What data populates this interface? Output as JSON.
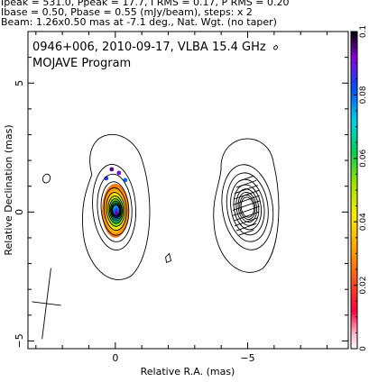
{
  "header": {
    "line1": "Ipeak = 531.0, Ppeak = 17.7, I RMS = 0.17, P RMS = 0.20",
    "line2": "Ibase = 0.50, Pbase = 0.55 (mJy/beam), steps: x 2",
    "line3": "Beam: 1.26x0.50 mas at -7.1 deg., Nat. Wgt. (no taper)"
  },
  "chart_data": {
    "type": "heatmap",
    "title": "0946+006, 2010-09-17, VLBA 15.4 GHz",
    "subtitle": "MOJAVE Program",
    "xlabel": "Relative R.A. (mas)",
    "ylabel": "Relative Declination (mas)",
    "xlim": [
      3.3,
      -8.8
    ],
    "ylim": [
      -5.3,
      7.0
    ],
    "x_ticks": [
      {
        "value": 0,
        "label": "0"
      },
      {
        "value": -5,
        "label": "−5"
      }
    ],
    "y_ticks": [
      {
        "value": 5,
        "label": "5"
      },
      {
        "value": 0,
        "label": "0"
      },
      {
        "value": -5,
        "label": "−5"
      }
    ],
    "colorbar": {
      "min": 0.0,
      "max": 0.1,
      "ticks": [
        {
          "value": 0.0,
          "label": "0"
        },
        {
          "value": 0.02,
          "label": "0.02"
        },
        {
          "value": 0.04,
          "label": "0.04"
        },
        {
          "value": 0.06,
          "label": "0.06"
        },
        {
          "value": 0.08,
          "label": "0.08"
        },
        {
          "value": 0.1,
          "label": "0.1"
        }
      ]
    },
    "components": [
      {
        "name": "core",
        "x": 0.0,
        "y": 0.05,
        "sigma_x": 0.48,
        "sigma_y": 1.1,
        "amp": 1.0,
        "fill": true
      },
      {
        "name": "jet",
        "x": -4.95,
        "y": 0.25,
        "sigma_x": 0.62,
        "sigma_y": 1.15,
        "amp": 0.12,
        "fill": false
      }
    ],
    "contours": {
      "core_levels": 11,
      "jet_levels": 8
    },
    "beam": {
      "x": 2.6,
      "y": -3.55,
      "major": 1.26,
      "minor": 0.5,
      "pa_deg": -7.1
    }
  }
}
